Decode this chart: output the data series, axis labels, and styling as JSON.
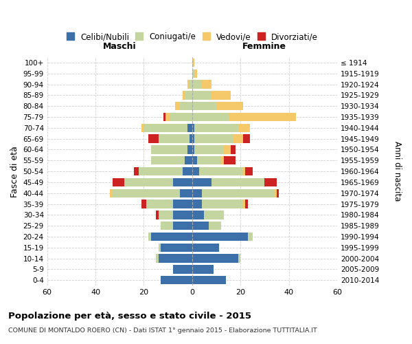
{
  "age_groups": [
    "0-4",
    "5-9",
    "10-14",
    "15-19",
    "20-24",
    "25-29",
    "30-34",
    "35-39",
    "40-44",
    "45-49",
    "50-54",
    "55-59",
    "60-64",
    "65-69",
    "70-74",
    "75-79",
    "80-84",
    "85-89",
    "90-94",
    "95-99",
    "100+"
  ],
  "birth_years": [
    "2010-2014",
    "2005-2009",
    "2000-2004",
    "1995-1999",
    "1990-1994",
    "1985-1989",
    "1980-1984",
    "1975-1979",
    "1970-1974",
    "1965-1969",
    "1960-1964",
    "1955-1959",
    "1950-1954",
    "1945-1949",
    "1940-1944",
    "1935-1939",
    "1930-1934",
    "1925-1929",
    "1920-1924",
    "1915-1919",
    "≤ 1914"
  ],
  "males": {
    "celibe": [
      13,
      8,
      14,
      13,
      17,
      8,
      8,
      8,
      5,
      8,
      4,
      3,
      2,
      1,
      2,
      0,
      0,
      0,
      0,
      0,
      0
    ],
    "coniugato": [
      0,
      0,
      1,
      1,
      1,
      5,
      6,
      11,
      28,
      20,
      18,
      14,
      15,
      13,
      18,
      9,
      5,
      3,
      1,
      0,
      0
    ],
    "vedovo": [
      0,
      0,
      0,
      0,
      0,
      0,
      0,
      0,
      1,
      0,
      0,
      0,
      0,
      0,
      1,
      2,
      2,
      1,
      1,
      0,
      0
    ],
    "divorziato": [
      0,
      0,
      0,
      0,
      0,
      0,
      1,
      2,
      0,
      5,
      2,
      0,
      0,
      4,
      0,
      1,
      0,
      0,
      0,
      0,
      0
    ]
  },
  "females": {
    "nubile": [
      14,
      9,
      19,
      11,
      23,
      7,
      5,
      4,
      4,
      8,
      3,
      2,
      1,
      1,
      1,
      0,
      0,
      0,
      0,
      0,
      0
    ],
    "coniugata": [
      0,
      0,
      1,
      0,
      2,
      5,
      8,
      17,
      30,
      22,
      18,
      10,
      12,
      16,
      18,
      15,
      10,
      8,
      4,
      1,
      0
    ],
    "vedova": [
      0,
      0,
      0,
      0,
      0,
      0,
      0,
      1,
      1,
      0,
      1,
      1,
      3,
      4,
      5,
      28,
      11,
      8,
      4,
      1,
      1
    ],
    "divorziata": [
      0,
      0,
      0,
      0,
      0,
      0,
      0,
      1,
      1,
      5,
      3,
      5,
      2,
      3,
      0,
      0,
      0,
      0,
      0,
      0,
      0
    ]
  },
  "colors": {
    "celibe": "#3d6fa8",
    "coniugato": "#c5d5a0",
    "vedovo": "#f5c96a",
    "divorziato": "#cc2222"
  },
  "xlim": 60,
  "title": "Popolazione per età, sesso e stato civile - 2015",
  "subtitle": "COMUNE DI MONTALDO ROERO (CN) - Dati ISTAT 1° gennaio 2015 - Elaborazione TUTTITALIA.IT",
  "ylabel_left": "Fasce di età",
  "ylabel_right": "Anni di nascita",
  "xlabel_maschi": "Maschi",
  "xlabel_femmine": "Femmine",
  "legend_labels": [
    "Celibi/Nubili",
    "Coniugati/e",
    "Vedovi/e",
    "Divorziati/e"
  ]
}
